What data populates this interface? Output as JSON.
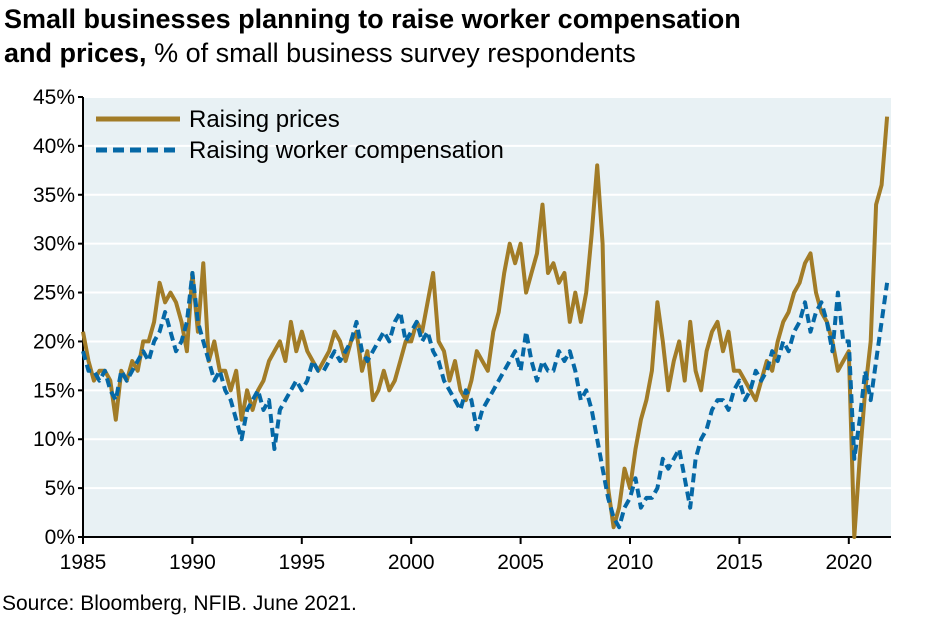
{
  "title": {
    "bold_line1": "Small businesses planning to raise worker compensation",
    "bold_line2": "and prices,",
    "subtitle": "% of small business survey respondents"
  },
  "source": "Source: Bloomberg, NFIB. June 2021.",
  "colors": {
    "prices": "#A27C27",
    "compensation": "#0568A6",
    "plot_bg": "#E8F1F4",
    "grid": "#FFFFFF"
  },
  "chart_data": {
    "type": "line",
    "title": "Small businesses planning to raise worker compensation and prices, % of small business survey respondents",
    "xlim": [
      1985,
      2021.9
    ],
    "ylim": [
      0,
      45
    ],
    "x_ticks": [
      "1985",
      "1990",
      "1995",
      "2000",
      "2005",
      "2010",
      "2015",
      "2020"
    ],
    "y_ticks": [
      "0%",
      "5%",
      "10%",
      "15%",
      "20%",
      "25%",
      "30%",
      "35%",
      "40%",
      "45%"
    ],
    "grid": "horizontal",
    "legend": "top-left",
    "x_start": 1985,
    "x_step_years": 0.25,
    "series": [
      {
        "name": "Raising prices",
        "style": "solid",
        "values": [
          21,
          18,
          16,
          17,
          17,
          16,
          12,
          17,
          16,
          18,
          17,
          20,
          20,
          22,
          26,
          24,
          25,
          24,
          22,
          19,
          27,
          21,
          28,
          18,
          20,
          17,
          17,
          15,
          17,
          12,
          15,
          13,
          15,
          16,
          18,
          19,
          20,
          18,
          22,
          19,
          21,
          19,
          18,
          17,
          18,
          19,
          21,
          20,
          18,
          20,
          21,
          17,
          19,
          14,
          15,
          17,
          15,
          16,
          18,
          20,
          20,
          22,
          21,
          24,
          27,
          20,
          19,
          16,
          18,
          15,
          14,
          16,
          19,
          18,
          17,
          21,
          23,
          27,
          30,
          28,
          30,
          25,
          27,
          29,
          34,
          27,
          28,
          26,
          27,
          22,
          25,
          22,
          25,
          31,
          38,
          30,
          5,
          1,
          3,
          7,
          5,
          9,
          12,
          14,
          17,
          24,
          20,
          15,
          18,
          20,
          16,
          22,
          17,
          15,
          19,
          21,
          22,
          19,
          21,
          17,
          17,
          16,
          15,
          14,
          16,
          18,
          17,
          20,
          22,
          23,
          25,
          26,
          28,
          29,
          25,
          23,
          22,
          20,
          17,
          18,
          19,
          0,
          8,
          15,
          20,
          34,
          36,
          43
        ]
      },
      {
        "name": "Raising worker compensation",
        "style": "dashed",
        "values": [
          19,
          17,
          17,
          16,
          17,
          15,
          14,
          17,
          16,
          17,
          18,
          19,
          18,
          20,
          21,
          23,
          21,
          19,
          20,
          22,
          27,
          22,
          20,
          18,
          16,
          17,
          15,
          14,
          12,
          10,
          13,
          14,
          15,
          13,
          14,
          9,
          13,
          14,
          15,
          16,
          15,
          16,
          18,
          17,
          17,
          18,
          19,
          18,
          19,
          20,
          22,
          19,
          18,
          19,
          20,
          21,
          20,
          22,
          23,
          20,
          21,
          22,
          20,
          21,
          19,
          18,
          16,
          15,
          14,
          13,
          15,
          14,
          11,
          13,
          14,
          15,
          16,
          17,
          18,
          19,
          17,
          21,
          18,
          16,
          18,
          17,
          17,
          19,
          18,
          19,
          17,
          14,
          15,
          13,
          10,
          7,
          4,
          2,
          1,
          3,
          4,
          6,
          3,
          4,
          4,
          5,
          8,
          7,
          8,
          9,
          6,
          3,
          8,
          10,
          11,
          13,
          14,
          14,
          13,
          15,
          16,
          14,
          15,
          17,
          16,
          17,
          19,
          18,
          20,
          19,
          21,
          22,
          24,
          21,
          23,
          24,
          22,
          19,
          25,
          20,
          20,
          8,
          12,
          17,
          14,
          18,
          22,
          26
        ]
      }
    ]
  }
}
